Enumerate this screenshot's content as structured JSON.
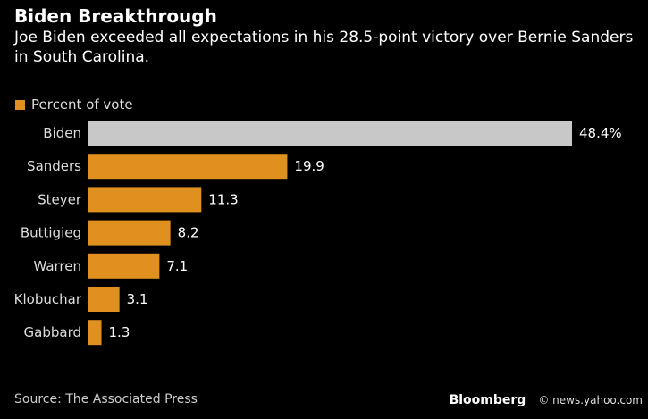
{
  "chart_data": {
    "type": "bar",
    "orientation": "horizontal",
    "title": "Biden Breakthrough",
    "subtitle": "Joe Biden exceeded all expectations in his 28.5-point victory over Bernie Sanders in South Carolina.",
    "legend": {
      "label": "Percent of vote",
      "placement": "top-left"
    },
    "categories": [
      "Biden",
      "Sanders",
      "Steyer",
      "Buttigieg",
      "Warren",
      "Klobuchar",
      "Gabbard"
    ],
    "values": [
      48.4,
      19.9,
      11.3,
      8.2,
      7.1,
      3.1,
      1.3
    ],
    "data_labels": [
      "48.4%",
      "19.9",
      "11.3",
      "8.2",
      "7.1",
      "3.1",
      "1.3"
    ],
    "colors": {
      "highlight": "#c8c8c8",
      "default": "#e0901f"
    },
    "highlight_index": 0,
    "xlim": [
      0,
      48.4
    ],
    "grid": false
  },
  "source": "Source: The Associated Press",
  "credit": "© news.yahoo.com",
  "logo": "Bloomberg"
}
